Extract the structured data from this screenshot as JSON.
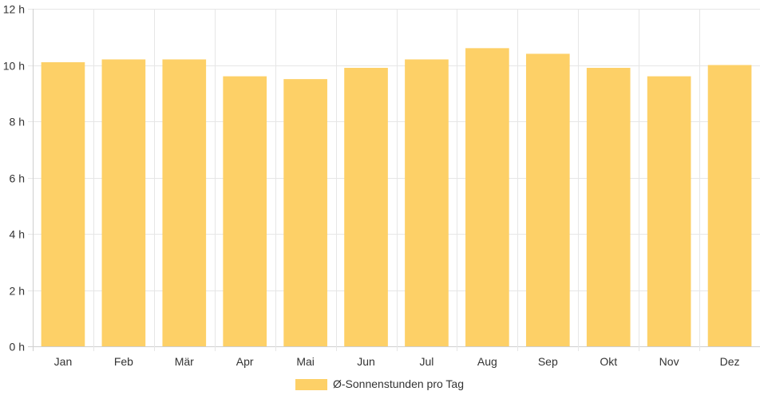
{
  "chart_data": {
    "type": "bar",
    "categories": [
      "Jan",
      "Feb",
      "Mär",
      "Apr",
      "Mai",
      "Jun",
      "Jul",
      "Aug",
      "Sep",
      "Okt",
      "Nov",
      "Dez"
    ],
    "series": [
      {
        "name": "Ø-Sonnenstunden pro Tag",
        "values": [
          10.1,
          10.2,
          10.2,
          9.6,
          9.5,
          9.9,
          10.2,
          10.6,
          10.4,
          9.9,
          9.6,
          10.0
        ],
        "color": "#fdd067"
      }
    ],
    "y_ticks": [
      "0 h",
      "2 h",
      "4 h",
      "6 h",
      "8 h",
      "10 h",
      "12 h"
    ],
    "ylim": [
      0,
      12
    ],
    "grid": true,
    "legend_position": "bottom"
  }
}
